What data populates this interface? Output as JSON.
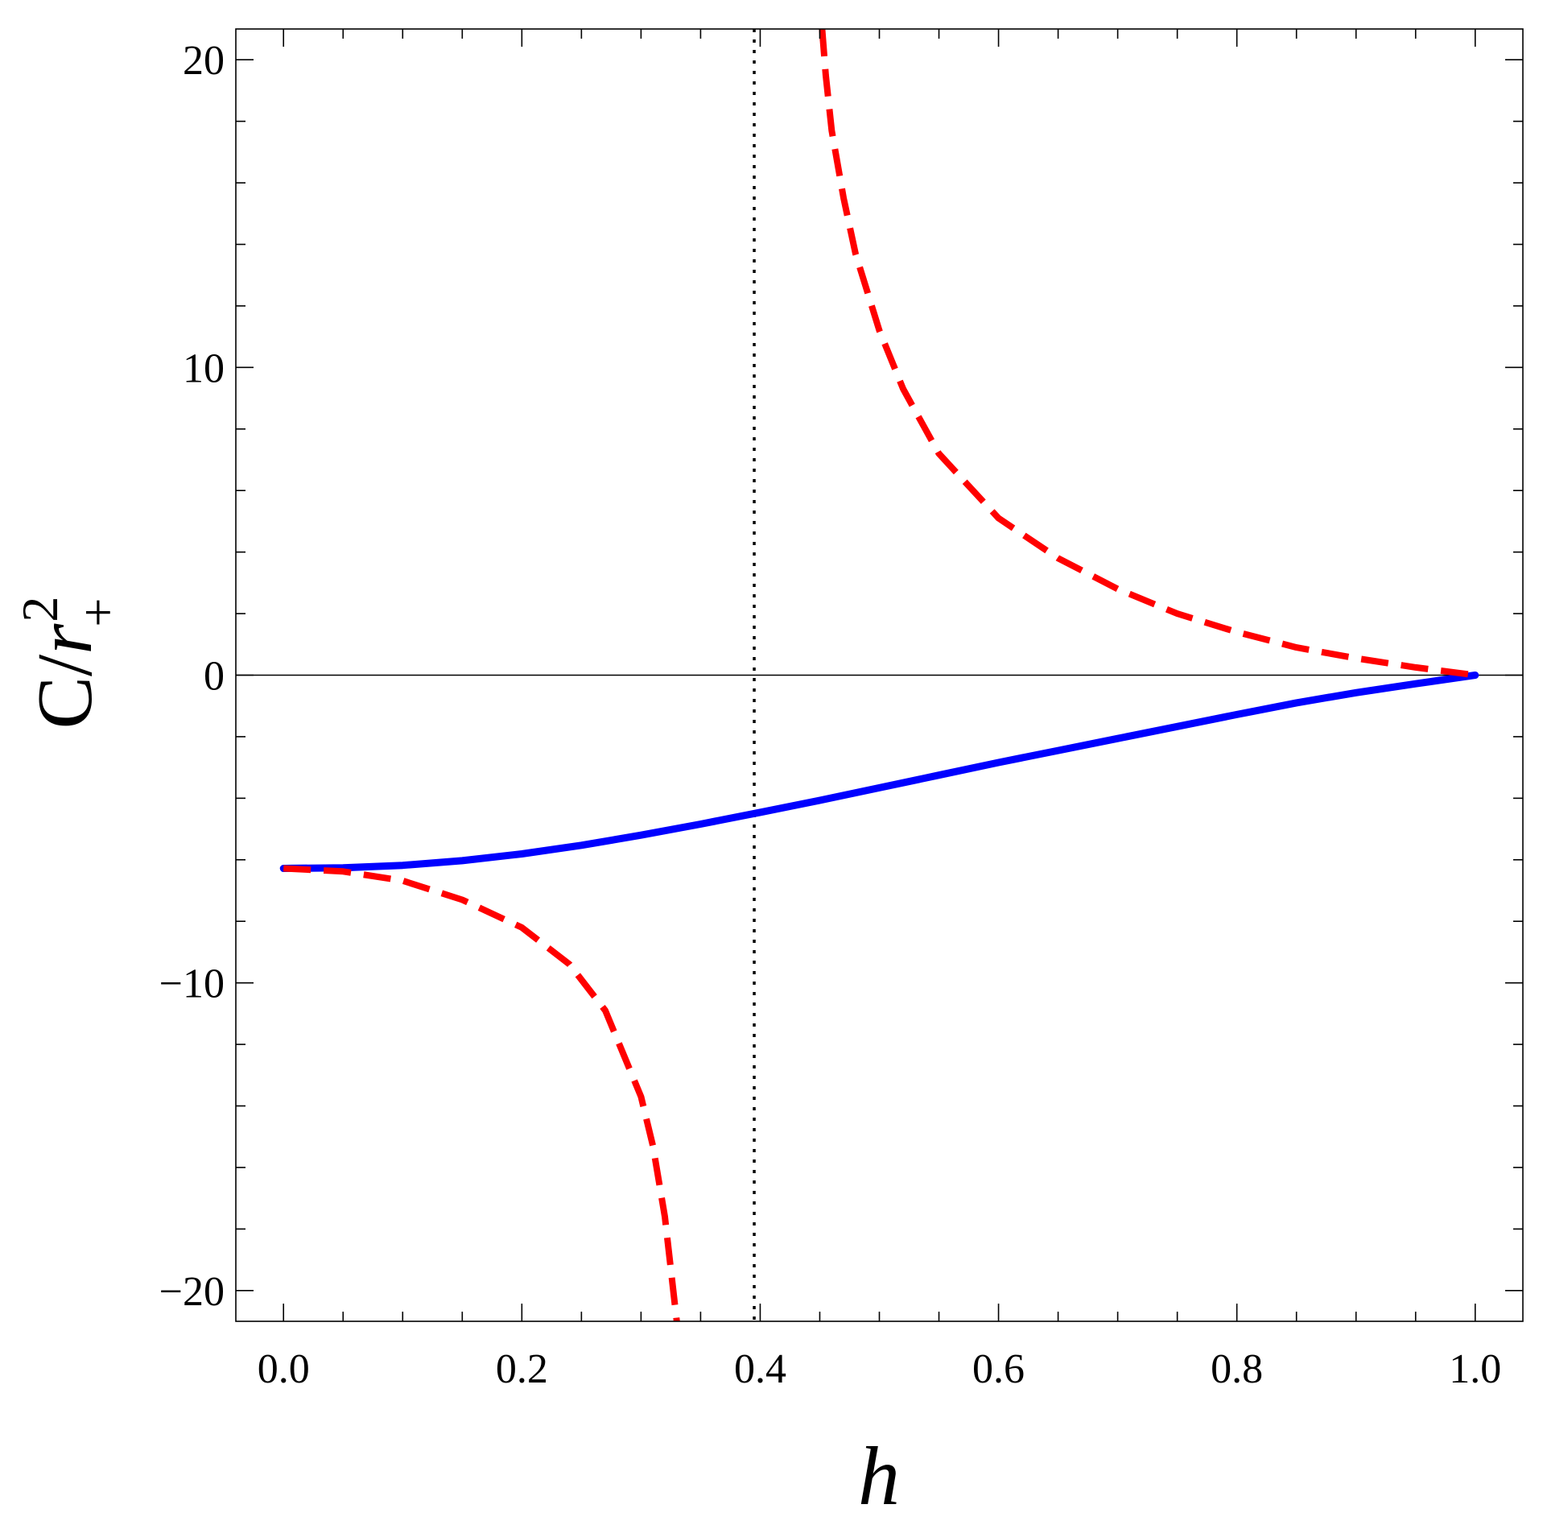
{
  "chart_data": {
    "type": "line",
    "xlabel": "h",
    "ylabel": {
      "base": "C/",
      "variable": "r",
      "superscript": "2",
      "subscript": "+"
    },
    "xlim": [
      -0.04,
      1.04
    ],
    "ylim": [
      -21,
      21
    ],
    "x_ticks": [
      {
        "value": 0.0,
        "label": "0.0"
      },
      {
        "value": 0.2,
        "label": "0.2"
      },
      {
        "value": 0.4,
        "label": "0.4"
      },
      {
        "value": 0.6,
        "label": "0.6"
      },
      {
        "value": 0.8,
        "label": "0.8"
      },
      {
        "value": 1.0,
        "label": "1.0"
      }
    ],
    "y_ticks": [
      {
        "value": -20,
        "label": "−20"
      },
      {
        "value": -10,
        "label": "−10"
      },
      {
        "value": 0,
        "label": "0"
      },
      {
        "value": 10,
        "label": "10"
      },
      {
        "value": 20,
        "label": "20"
      }
    ],
    "x_minor_step": 0.05,
    "y_minor_step": 2,
    "grid": false,
    "zero_line": true,
    "vline": {
      "x": 0.395,
      "style": "dotted",
      "color": "#000000"
    },
    "series": [
      {
        "style": "solid",
        "color": "#0000ff",
        "points": [
          [
            0.0,
            -6.28
          ],
          [
            0.05,
            -6.26
          ],
          [
            0.1,
            -6.18
          ],
          [
            0.15,
            -6.03
          ],
          [
            0.2,
            -5.81
          ],
          [
            0.25,
            -5.53
          ],
          [
            0.3,
            -5.2
          ],
          [
            0.35,
            -4.84
          ],
          [
            0.4,
            -4.46
          ],
          [
            0.45,
            -4.07
          ],
          [
            0.5,
            -3.66
          ],
          [
            0.55,
            -3.25
          ],
          [
            0.6,
            -2.84
          ],
          [
            0.65,
            -2.45
          ],
          [
            0.7,
            -2.06
          ],
          [
            0.75,
            -1.67
          ],
          [
            0.8,
            -1.28
          ],
          [
            0.85,
            -0.9
          ],
          [
            0.9,
            -0.57
          ],
          [
            0.95,
            -0.28
          ],
          [
            1.0,
            0.0
          ]
        ]
      },
      {
        "style": "dashed",
        "color": "#ff0000",
        "points": [
          [
            0.0,
            -6.28
          ],
          [
            0.05,
            -6.38
          ],
          [
            0.1,
            -6.68
          ],
          [
            0.15,
            -7.3
          ],
          [
            0.2,
            -8.2
          ],
          [
            0.24,
            -9.4
          ],
          [
            0.27,
            -10.9
          ],
          [
            0.3,
            -13.7
          ],
          [
            0.31,
            -15.3
          ],
          [
            0.32,
            -17.6
          ],
          [
            0.325,
            -19.3
          ],
          [
            0.33,
            -21.0
          ]
        ]
      },
      {
        "style": "dashed",
        "color": "#ff0000",
        "points": [
          [
            0.452,
            21.0
          ],
          [
            0.455,
            19.5
          ],
          [
            0.46,
            17.7
          ],
          [
            0.47,
            15.5
          ],
          [
            0.48,
            13.7
          ],
          [
            0.5,
            11.2
          ],
          [
            0.52,
            9.3
          ],
          [
            0.55,
            7.2
          ],
          [
            0.6,
            5.1
          ],
          [
            0.65,
            3.8
          ],
          [
            0.7,
            2.8
          ],
          [
            0.75,
            2.0
          ],
          [
            0.8,
            1.4
          ],
          [
            0.85,
            0.9
          ],
          [
            0.9,
            0.55
          ],
          [
            0.95,
            0.25
          ],
          [
            1.0,
            0.0
          ]
        ]
      }
    ]
  }
}
